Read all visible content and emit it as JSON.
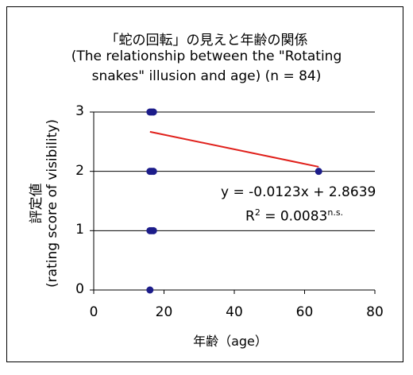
{
  "chart_data": {
    "type": "scatter",
    "title_lines": [
      "「蛇の回転」の見えと年齢の関係",
      "(The relationship between the \"Rotating",
      "snakes\" illusion and age) (n = 84)"
    ],
    "xlabel": "年齢（age）",
    "ylabel_lines": [
      "評定値",
      "(rating score of visibility)"
    ],
    "xlim": [
      0,
      80
    ],
    "ylim": [
      0,
      3
    ],
    "xticks": [
      0,
      20,
      40,
      60,
      80
    ],
    "yticks": [
      0,
      1,
      2,
      3
    ],
    "gridlines": "horizontal",
    "points": [
      [
        16,
        3
      ],
      [
        16.5,
        3
      ],
      [
        17,
        3
      ],
      [
        16,
        2
      ],
      [
        16.5,
        2
      ],
      [
        17,
        2
      ],
      [
        16,
        1
      ],
      [
        16.5,
        1
      ],
      [
        17,
        1
      ],
      [
        16,
        0
      ],
      [
        64,
        2
      ]
    ],
    "marker_color": "#1c1c8a",
    "trendline": {
      "x": [
        16,
        64
      ],
      "slope": -0.0123,
      "intercept": 2.8639,
      "color": "#e0201b"
    },
    "equation": "y = -0.0123x + 2.8639",
    "r2_prefix": "R",
    "r2_exp": "2",
    "r2_value": " = 0.0083",
    "r2_sig": "n.s."
  }
}
